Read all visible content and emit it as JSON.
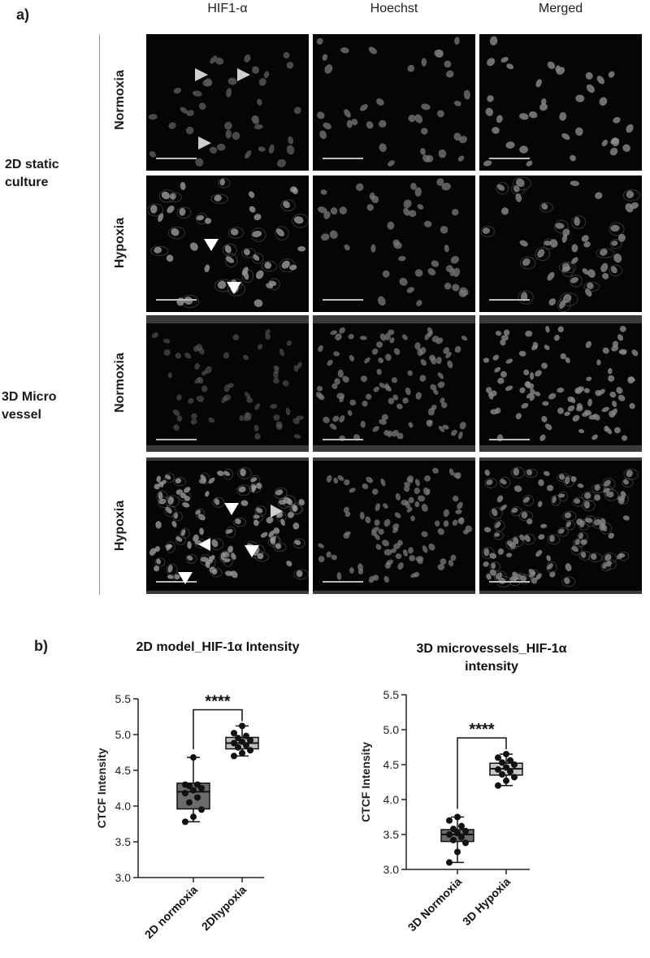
{
  "panel_a": {
    "label": "a)",
    "columns": [
      "HIF1-α",
      "Hoechst",
      "Merged"
    ],
    "groups": [
      "2D static culture",
      "3D Micro vessel"
    ],
    "group_lines": [
      [
        "2D static",
        "culture"
      ],
      [
        "3D Micro",
        "vessel"
      ]
    ],
    "conditions": [
      "Normoxia",
      "Hypoxia",
      "Normoxia",
      "Hypoxia"
    ]
  },
  "panel_b": {
    "label": "b)"
  },
  "chart_data": [
    {
      "type": "box",
      "title": "2D model_HIF-1α Intensity",
      "ylabel": "CTCF Intensity",
      "ylim": [
        3.0,
        5.5
      ],
      "yticks": [
        "3.0",
        "3.5",
        "4.0",
        "4.5",
        "5.0",
        "5.5"
      ],
      "categories": [
        "2D normoxia",
        "2Dhypoxia"
      ],
      "boxes": [
        {
          "min": 3.78,
          "q1": 3.96,
          "median": 4.2,
          "q3": 4.32,
          "max": 4.68,
          "fill": "#6b6b6b",
          "points": [
            3.78,
            3.85,
            3.95,
            4.05,
            4.12,
            4.18,
            4.22,
            4.25,
            4.28,
            4.3,
            4.3,
            4.68
          ]
        },
        {
          "min": 4.7,
          "q1": 4.8,
          "median": 4.88,
          "q3": 4.96,
          "max": 5.12,
          "fill": "#bdbdbd",
          "points": [
            4.7,
            4.74,
            4.78,
            4.82,
            4.85,
            4.88,
            4.9,
            4.92,
            4.95,
            4.98,
            5.02,
            5.12
          ]
        }
      ],
      "significance": "****"
    },
    {
      "type": "box",
      "title": "3D microvessels_HIF-1α intensity",
      "title_lines": [
        "3D microvessels_HIF-1α",
        "intensity"
      ],
      "ylabel": "CTCF Intensity",
      "ylim": [
        3.0,
        5.5
      ],
      "yticks": [
        "3.0",
        "3.5",
        "4.0",
        "4.5",
        "5.0",
        "5.5"
      ],
      "categories": [
        "3D Normoxia",
        "3D Hypoxia"
      ],
      "boxes": [
        {
          "min": 3.1,
          "q1": 3.4,
          "median": 3.5,
          "q3": 3.57,
          "max": 3.75,
          "fill": "#6b6b6b",
          "points": [
            3.1,
            3.25,
            3.38,
            3.42,
            3.46,
            3.5,
            3.52,
            3.55,
            3.58,
            3.62,
            3.7,
            3.75
          ]
        },
        {
          "min": 4.2,
          "q1": 4.35,
          "median": 4.44,
          "q3": 4.52,
          "max": 4.65,
          "fill": "#c8c8c8",
          "points": [
            4.2,
            4.27,
            4.32,
            4.36,
            4.4,
            4.43,
            4.46,
            4.5,
            4.53,
            4.56,
            4.6,
            4.65
          ]
        }
      ],
      "significance": "****"
    }
  ]
}
